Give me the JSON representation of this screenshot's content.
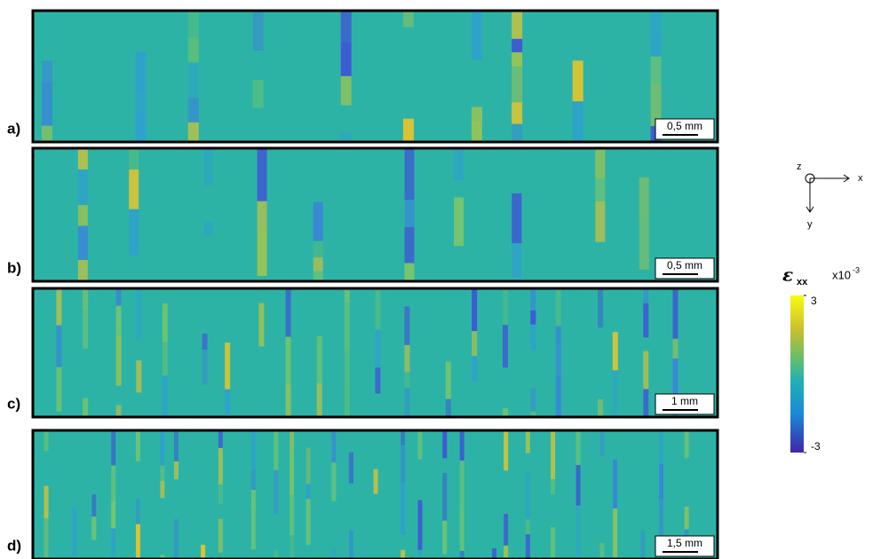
{
  "panels": [
    {
      "label": "a)",
      "scale_bar": "0,5 mm"
    },
    {
      "label": "b)",
      "scale_bar": "0,5 mm"
    },
    {
      "label": "c)",
      "scale_bar": "1 mm"
    },
    {
      "label": "d)",
      "scale_bar": "1,5 mm"
    }
  ],
  "axes_icon": {
    "z": "z",
    "x": "x",
    "y": "y"
  },
  "colorbar": {
    "symbol": "ε",
    "subscript": "xx",
    "multiplier": "x10",
    "exponent": "-3",
    "lim": [
      -3,
      3
    ],
    "ticks": [
      3,
      -3
    ]
  }
}
